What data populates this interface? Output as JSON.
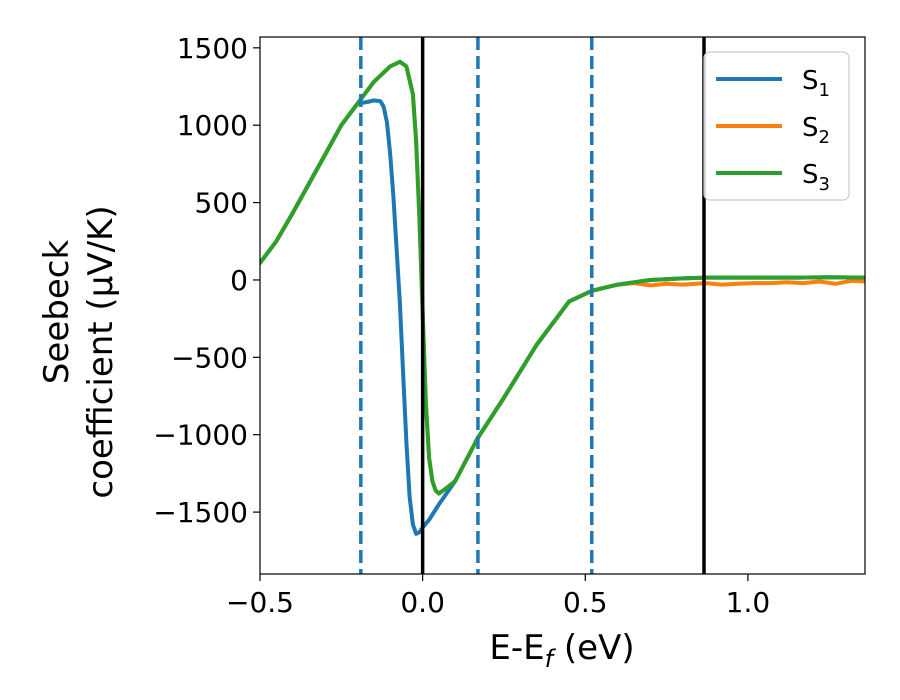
{
  "chart_data": {
    "type": "line",
    "xlabel": {
      "main": "E-E",
      "sub": "f",
      "tail": " (eV)"
    },
    "ylabel": {
      "line1": "Seebeck",
      "line2": "coefficient  (μV/K)"
    },
    "xlim": [
      -0.5,
      1.36
    ],
    "ylim": [
      -1900,
      1570
    ],
    "x_ticks": [
      -0.5,
      0.0,
      0.5,
      1.0
    ],
    "x_tick_labels": [
      "−0.5",
      "0.0",
      "0.5",
      "1.0"
    ],
    "y_ticks": [
      -1500,
      -1000,
      -500,
      0,
      500,
      1000,
      1500
    ],
    "y_tick_labels": [
      "−1500",
      "−1000",
      "−500",
      "0",
      "500",
      "1000",
      "1500"
    ],
    "grid": false,
    "legend_position": "top-right",
    "series": [
      {
        "name": "S",
        "name_sub": "1",
        "color": "#1f77b4",
        "x": [
          -0.5,
          -0.45,
          -0.4,
          -0.35,
          -0.3,
          -0.25,
          -0.2,
          -0.17,
          -0.15,
          -0.13,
          -0.12,
          -0.11,
          -0.1,
          -0.09,
          -0.08,
          -0.07,
          -0.06,
          -0.05,
          -0.04,
          -0.03,
          -0.02,
          -0.01,
          0.0,
          0.02,
          0.05,
          0.1,
          0.17,
          0.25,
          0.35,
          0.45,
          0.52,
          0.6,
          0.7,
          0.8,
          0.87,
          0.95,
          1.05,
          1.15,
          1.25,
          1.36
        ],
        "y": [
          110,
          250,
          430,
          620,
          810,
          1000,
          1140,
          1150,
          1160,
          1155,
          1120,
          1020,
          820,
          540,
          200,
          -150,
          -600,
          -1050,
          -1400,
          -1580,
          -1640,
          -1630,
          -1600,
          -1550,
          -1450,
          -1300,
          -1020,
          -760,
          -420,
          -140,
          -70,
          -30,
          0,
          10,
          15,
          15,
          15,
          15,
          18,
          15
        ]
      },
      {
        "name": "S",
        "name_sub": "2",
        "color": "#ff7f0e",
        "x": [
          -0.5,
          -0.45,
          -0.4,
          -0.35,
          -0.3,
          -0.25,
          -0.2,
          -0.15,
          -0.1,
          -0.07,
          -0.05,
          -0.03,
          -0.02,
          -0.01,
          0.0,
          0.01,
          0.02,
          0.03,
          0.04,
          0.05,
          0.07,
          0.1,
          0.17,
          0.25,
          0.35,
          0.45,
          0.52,
          0.6,
          0.65,
          0.7,
          0.75,
          0.8,
          0.87,
          0.92,
          0.97,
          1.02,
          1.07,
          1.12,
          1.17,
          1.22,
          1.27,
          1.32,
          1.36
        ],
        "y": [
          110,
          250,
          430,
          620,
          810,
          1000,
          1140,
          1280,
          1380,
          1410,
          1380,
          1200,
          900,
          400,
          -200,
          -800,
          -1150,
          -1300,
          -1360,
          -1380,
          -1350,
          -1300,
          -1020,
          -760,
          -420,
          -140,
          -70,
          -30,
          -20,
          -35,
          -25,
          -30,
          -20,
          -30,
          -25,
          -20,
          -20,
          -15,
          -20,
          -10,
          -25,
          -5,
          -10
        ]
      },
      {
        "name": "S",
        "name_sub": "3",
        "color": "#2ca02c",
        "x": [
          -0.5,
          -0.45,
          -0.4,
          -0.35,
          -0.3,
          -0.25,
          -0.2,
          -0.15,
          -0.1,
          -0.07,
          -0.05,
          -0.03,
          -0.02,
          -0.01,
          0.0,
          0.01,
          0.02,
          0.03,
          0.04,
          0.05,
          0.07,
          0.1,
          0.17,
          0.25,
          0.35,
          0.45,
          0.52,
          0.6,
          0.7,
          0.8,
          0.87,
          0.95,
          1.05,
          1.15,
          1.25,
          1.36
        ],
        "y": [
          110,
          250,
          430,
          620,
          810,
          1000,
          1140,
          1280,
          1380,
          1410,
          1380,
          1200,
          900,
          400,
          -200,
          -800,
          -1150,
          -1300,
          -1360,
          -1380,
          -1350,
          -1300,
          -1020,
          -760,
          -420,
          -140,
          -70,
          -30,
          0,
          10,
          15,
          15,
          15,
          15,
          18,
          15
        ]
      }
    ],
    "vlines": [
      {
        "x": -0.19,
        "style": "dashed",
        "color": "#1f77b4"
      },
      {
        "x": 0.0,
        "style": "solid",
        "color": "#000000"
      },
      {
        "x": 0.17,
        "style": "dashed",
        "color": "#1f77b4"
      },
      {
        "x": 0.52,
        "style": "dashed",
        "color": "#1f77b4"
      },
      {
        "x": 0.865,
        "style": "solid",
        "color": "#000000"
      }
    ]
  }
}
